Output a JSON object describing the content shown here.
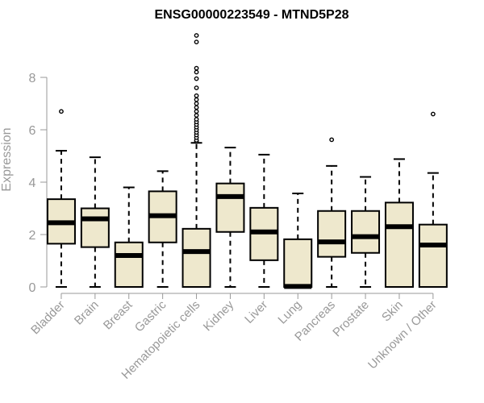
{
  "chart_data": {
    "type": "box",
    "title": "ENSG00000223549 - MTND5P28",
    "xlabel": "",
    "ylabel": "Expression",
    "ylim": [
      0,
      10
    ],
    "yticks": [
      0,
      2,
      4,
      6,
      8
    ],
    "ytick_labels": [
      "0",
      "2",
      "4",
      "6",
      "8"
    ],
    "grid": false,
    "legend": "none",
    "box_fill": "#EEE8CD",
    "box_stroke": "#000000",
    "categories": [
      "Bladder",
      "Brain",
      "Breast",
      "Gastric",
      "Hematopoietic cells",
      "Kidney",
      "Liver",
      "Lung",
      "Pancreas",
      "Prostate",
      "Skin",
      "Unknown / Other"
    ],
    "boxes": [
      {
        "label": "Bladder",
        "whisker_low": 0,
        "q1": 1.65,
        "median": 2.45,
        "q3": 3.35,
        "whisker_high": 5.2,
        "outliers": [
          6.7
        ]
      },
      {
        "label": "Brain",
        "whisker_low": 0,
        "q1": 1.52,
        "median": 2.6,
        "q3": 3.0,
        "whisker_high": 4.95,
        "outliers": []
      },
      {
        "label": "Breast",
        "whisker_low": 0,
        "q1": 0,
        "median": 1.2,
        "q3": 1.7,
        "whisker_high": 3.8,
        "outliers": []
      },
      {
        "label": "Gastric",
        "whisker_low": 0,
        "q1": 1.7,
        "median": 2.72,
        "q3": 3.65,
        "whisker_high": 4.42,
        "outliers": []
      },
      {
        "label": "Hematopoietic cells",
        "whisker_low": 0,
        "q1": 0,
        "median": 1.35,
        "q3": 2.22,
        "whisker_high": 5.5,
        "outliers": [
          5.55,
          5.6,
          5.7,
          5.8,
          5.9,
          6.0,
          6.1,
          6.2,
          6.3,
          6.4,
          6.55,
          6.7,
          6.85,
          7.0,
          7.15,
          7.3,
          7.6,
          7.95,
          8.2,
          8.35,
          9.35,
          9.6
        ]
      },
      {
        "label": "Kidney",
        "whisker_low": 0,
        "q1": 2.1,
        "median": 3.45,
        "q3": 3.95,
        "whisker_high": 5.32,
        "outliers": []
      },
      {
        "label": "Liver",
        "whisker_low": 0,
        "q1": 1.02,
        "median": 2.1,
        "q3": 3.02,
        "whisker_high": 5.05,
        "outliers": []
      },
      {
        "label": "Lung",
        "whisker_low": 0,
        "q1": 0,
        "median": 0.02,
        "q3": 1.82,
        "whisker_high": 3.57,
        "outliers": []
      },
      {
        "label": "Pancreas",
        "whisker_low": 0,
        "q1": 1.15,
        "median": 1.72,
        "q3": 2.9,
        "whisker_high": 4.62,
        "outliers": [
          5.62
        ]
      },
      {
        "label": "Prostate",
        "whisker_low": 0,
        "q1": 1.3,
        "median": 1.92,
        "q3": 2.9,
        "whisker_high": 4.2,
        "outliers": []
      },
      {
        "label": "Skin",
        "whisker_low": 0,
        "q1": 0,
        "median": 2.3,
        "q3": 3.22,
        "whisker_high": 4.88,
        "outliers": []
      },
      {
        "label": "Unknown / Other",
        "whisker_low": 0,
        "q1": 0,
        "median": 1.6,
        "q3": 2.38,
        "whisker_high": 4.35,
        "outliers": [
          6.6
        ]
      }
    ]
  }
}
